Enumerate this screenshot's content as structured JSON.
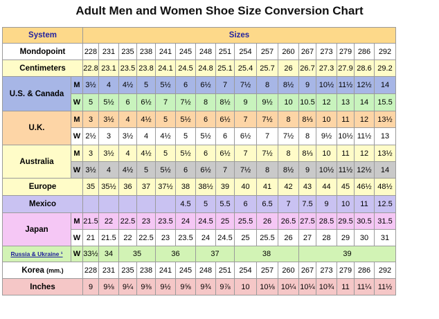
{
  "title": "Adult Men and Women Shoe Size Conversion Chart",
  "header": {
    "system": "System",
    "sizes": "Sizes"
  },
  "labels": {
    "mondopoint": "Mondopoint",
    "centimeters": "Centimeters",
    "us_canada": "U.S. & Canada",
    "uk": "U.K.",
    "australia": "Australia",
    "europe": "Europe",
    "mexico": "Mexico",
    "japan": "Japan",
    "russia": "Russia & Ukraine ¹",
    "korea": "Korea",
    "korea_unit": "(mm.)",
    "inches": "Inches",
    "m": "M",
    "w": "W"
  },
  "colors": {
    "header": "#fdd98a",
    "system_text": "#2222a0",
    "centimeters": "#fffcc8",
    "us_men": "#a7b6e6",
    "us_women": "#c8f3bd",
    "uk_men": "#fdd5a6",
    "australia_women": "#c9c9c9",
    "mexico": "#c9c2f2",
    "japan": "#f5c7f5",
    "russia": "#d2f3b5",
    "inches": "#f5c7c7"
  },
  "rows": {
    "mondopoint": [
      "228",
      "231",
      "235",
      "238",
      "241",
      "245",
      "248",
      "251",
      "254",
      "257",
      "260",
      "267",
      "273",
      "279",
      "286",
      "292"
    ],
    "centimeters": [
      "22.8",
      "23.1",
      "23.5",
      "23.8",
      "24.1",
      "24.5",
      "24.8",
      "25.1",
      "25.4",
      "25.7",
      "26",
      "26.7",
      "27.3",
      "27.9",
      "28.6",
      "29.2"
    ],
    "us_m": [
      "3½",
      "4",
      "4½",
      "5",
      "5½",
      "6",
      "6½",
      "7",
      "7½",
      "8",
      "8½",
      "9",
      "10½",
      "11½",
      "12½",
      "14"
    ],
    "us_w": [
      "5",
      "5½",
      "6",
      "6½",
      "7",
      "7½",
      "8",
      "8½",
      "9",
      "9½",
      "10",
      "10.5",
      "12",
      "13",
      "14",
      "15.5"
    ],
    "uk_m": [
      "3",
      "3½",
      "4",
      "4½",
      "5",
      "5½",
      "6",
      "6½",
      "7",
      "7½",
      "8",
      "8⅓",
      "10",
      "11",
      "12",
      "13½"
    ],
    "uk_w": [
      "2½",
      "3",
      "3½",
      "4",
      "4½",
      "5",
      "5½",
      "6",
      "6½",
      "7",
      "7½",
      "8",
      "9½",
      "10½",
      "11½",
      "13"
    ],
    "au_m": [
      "3",
      "3½",
      "4",
      "4½",
      "5",
      "5½",
      "6",
      "6½",
      "7",
      "7½",
      "8",
      "8⅓",
      "10",
      "11",
      "12",
      "13½"
    ],
    "au_w": [
      "3½",
      "4",
      "4½",
      "5",
      "5½",
      "6",
      "6½",
      "7",
      "7½",
      "8",
      "8½",
      "9",
      "10½",
      "11½",
      "12½",
      "14"
    ],
    "europe": [
      "35",
      "35½",
      "36",
      "37",
      "37½",
      "38",
      "38½",
      "39",
      "40",
      "41",
      "42",
      "43",
      "44",
      "45",
      "46½",
      "48½"
    ],
    "mexico": [
      "",
      "",
      "",
      "",
      "",
      "4.5",
      "5",
      "5.5",
      "6",
      "6.5",
      "7",
      "7.5",
      "9",
      "10",
      "11",
      "12.5"
    ],
    "jp_m": [
      "21.5",
      "22",
      "22.5",
      "23",
      "23.5",
      "24",
      "24.5",
      "25",
      "25.5",
      "26",
      "26.5",
      "27.5",
      "28.5",
      "29.5",
      "30.5",
      "31.5"
    ],
    "jp_w": [
      "21",
      "21.5",
      "22",
      "22.5",
      "23",
      "23.5",
      "24",
      "24.5",
      "25",
      "25.5",
      "26",
      "27",
      "28",
      "29",
      "30",
      "31"
    ],
    "russia": [
      "33½",
      "34",
      "35",
      "36",
      "37",
      "38",
      "39"
    ],
    "korea": [
      "228",
      "231",
      "235",
      "238",
      "241",
      "245",
      "248",
      "251",
      "254",
      "257",
      "260",
      "267",
      "273",
      "279",
      "286",
      "292"
    ],
    "inches": [
      "9",
      "9⅛",
      "9¼",
      "9⅜",
      "9½",
      "9⅝",
      "9¾",
      "9⅞",
      "10",
      "10⅛",
      "10¼",
      "10¼",
      "10¾",
      "11",
      "11¼",
      "11½"
    ]
  }
}
